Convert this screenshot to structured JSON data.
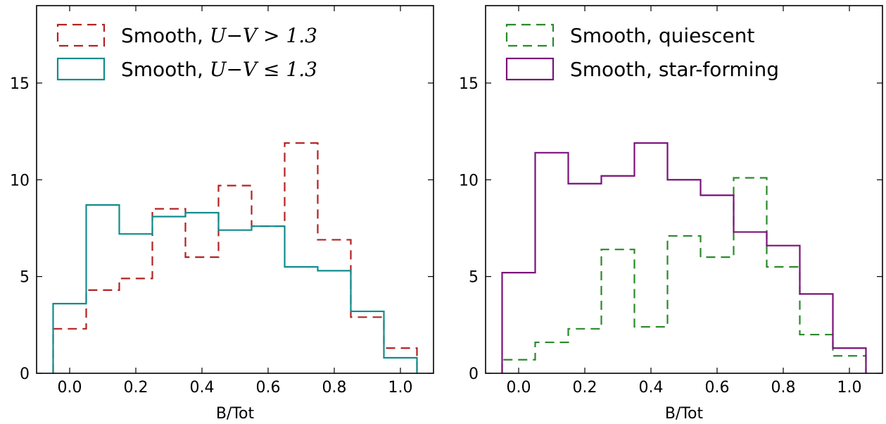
{
  "chart_data": [
    {
      "type": "step-histogram",
      "xlabel": "B/Tot",
      "ylabel": "",
      "xlim": [
        -0.1,
        1.1
      ],
      "ylim": [
        0,
        19
      ],
      "xticks": [
        "0.0",
        "0.2",
        "0.4",
        "0.6",
        "0.8",
        "1.0"
      ],
      "yticks": [
        "0",
        "5",
        "10",
        "15"
      ],
      "bin_edges": [
        -0.05,
        0.05,
        0.15,
        0.25,
        0.35,
        0.45,
        0.55,
        0.65,
        0.75,
        0.85,
        0.95,
        1.05
      ],
      "legend": {
        "location": "upper left"
      },
      "series": [
        {
          "name": "Smooth, ",
          "math": "U−V > 1.3",
          "color": "#b22222",
          "linestyle": "dashed",
          "values": [
            2.3,
            4.3,
            4.9,
            8.5,
            6.0,
            9.7,
            7.6,
            11.9,
            6.9,
            2.9,
            1.3
          ]
        },
        {
          "name": "Smooth, ",
          "math": "U−V ≤ 1.3",
          "color": "#108c8c",
          "linestyle": "solid",
          "values": [
            3.6,
            8.7,
            7.2,
            8.1,
            8.3,
            7.4,
            7.6,
            5.5,
            5.3,
            3.2,
            0.8
          ]
        }
      ]
    },
    {
      "type": "step-histogram",
      "xlabel": "B/Tot",
      "ylabel": "",
      "xlim": [
        -0.1,
        1.1
      ],
      "ylim": [
        0,
        19
      ],
      "xticks": [
        "0.0",
        "0.2",
        "0.4",
        "0.6",
        "0.8",
        "1.0"
      ],
      "yticks": [
        "0",
        "5",
        "10",
        "15"
      ],
      "bin_edges": [
        -0.05,
        0.05,
        0.15,
        0.25,
        0.35,
        0.45,
        0.55,
        0.65,
        0.75,
        0.85,
        0.95,
        1.05
      ],
      "legend": {
        "location": "upper left"
      },
      "series": [
        {
          "name": "Smooth, quiescent",
          "math": "",
          "color": "#2a8a2a",
          "linestyle": "dashed",
          "values": [
            0.7,
            1.6,
            2.3,
            6.4,
            2.4,
            7.1,
            6.0,
            10.1,
            5.5,
            2.0,
            0.9
          ]
        },
        {
          "name": "Smooth, star-forming",
          "math": "",
          "color": "#7a117a",
          "linestyle": "solid",
          "values": [
            5.2,
            11.4,
            9.8,
            10.2,
            11.9,
            10.0,
            9.2,
            7.3,
            6.6,
            4.1,
            1.3
          ]
        }
      ]
    }
  ]
}
